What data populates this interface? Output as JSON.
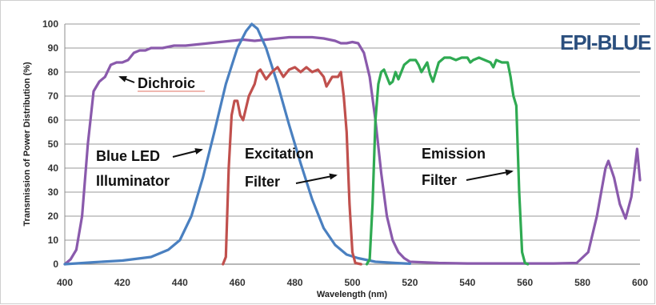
{
  "chart_data": {
    "type": "line",
    "title": "",
    "badge": "EPI-BLUE",
    "xlabel": "Wavelength (nm)",
    "ylabel": "Transmission of Power Distribution (%)",
    "xlim": [
      400,
      600
    ],
    "ylim": [
      0,
      100
    ],
    "xticks": [
      400,
      420,
      440,
      460,
      480,
      500,
      520,
      540,
      560,
      580,
      600
    ],
    "yticks": [
      0,
      10,
      20,
      30,
      40,
      50,
      60,
      70,
      80,
      90,
      100
    ],
    "grid": "horizontal",
    "series": [
      {
        "name": "Dichroic",
        "color": "#8a5aac",
        "points": [
          [
            400,
            0
          ],
          [
            402,
            2
          ],
          [
            404,
            6
          ],
          [
            406,
            20
          ],
          [
            408,
            50
          ],
          [
            410,
            72
          ],
          [
            412,
            76
          ],
          [
            414,
            78
          ],
          [
            416,
            83
          ],
          [
            418,
            84
          ],
          [
            420,
            84
          ],
          [
            422,
            85
          ],
          [
            424,
            88
          ],
          [
            426,
            89
          ],
          [
            428,
            89
          ],
          [
            430,
            90
          ],
          [
            434,
            90
          ],
          [
            438,
            91
          ],
          [
            442,
            91
          ],
          [
            446,
            91.5
          ],
          [
            450,
            92
          ],
          [
            454,
            92.5
          ],
          [
            458,
            93
          ],
          [
            462,
            93.5
          ],
          [
            466,
            93
          ],
          [
            470,
            93.5
          ],
          [
            474,
            94
          ],
          [
            478,
            94.5
          ],
          [
            482,
            94.5
          ],
          [
            486,
            94.5
          ],
          [
            490,
            94
          ],
          [
            494,
            93
          ],
          [
            496,
            92
          ],
          [
            498,
            92
          ],
          [
            500,
            92.5
          ],
          [
            502,
            92
          ],
          [
            504,
            88
          ],
          [
            506,
            78
          ],
          [
            508,
            60
          ],
          [
            510,
            38
          ],
          [
            512,
            20
          ],
          [
            514,
            10
          ],
          [
            516,
            5
          ],
          [
            518,
            2.5
          ],
          [
            520,
            1
          ],
          [
            530,
            0.5
          ],
          [
            540,
            0.3
          ],
          [
            560,
            0.3
          ],
          [
            570,
            0.3
          ],
          [
            578,
            0.5
          ],
          [
            582,
            5
          ],
          [
            585,
            20
          ],
          [
            588,
            40
          ],
          [
            589,
            43
          ],
          [
            591,
            36
          ],
          [
            593,
            25
          ],
          [
            595,
            19
          ],
          [
            597,
            28
          ],
          [
            599,
            48
          ],
          [
            600,
            35
          ]
        ]
      },
      {
        "name": "Blue LED Illuminator",
        "color": "#4a80c0",
        "points": [
          [
            400,
            0
          ],
          [
            410,
            0.8
          ],
          [
            420,
            1.5
          ],
          [
            430,
            3
          ],
          [
            436,
            6
          ],
          [
            440,
            10
          ],
          [
            444,
            20
          ],
          [
            448,
            36
          ],
          [
            452,
            55
          ],
          [
            456,
            75
          ],
          [
            460,
            90
          ],
          [
            463,
            97
          ],
          [
            465,
            100
          ],
          [
            467,
            98
          ],
          [
            470,
            90
          ],
          [
            474,
            75
          ],
          [
            478,
            58
          ],
          [
            482,
            42
          ],
          [
            486,
            27
          ],
          [
            490,
            15
          ],
          [
            494,
            8
          ],
          [
            498,
            4
          ],
          [
            502,
            2.5
          ],
          [
            508,
            1
          ],
          [
            515,
            0.5
          ],
          [
            520,
            0.2
          ]
        ]
      },
      {
        "name": "Excitation Filter",
        "color": "#c0504d",
        "points": [
          [
            455,
            0
          ],
          [
            456,
            3
          ],
          [
            457,
            40
          ],
          [
            458,
            62
          ],
          [
            459,
            68
          ],
          [
            460,
            68
          ],
          [
            461,
            62
          ],
          [
            462,
            60
          ],
          [
            463,
            65
          ],
          [
            464,
            70
          ],
          [
            466,
            75
          ],
          [
            467,
            80
          ],
          [
            468,
            81
          ],
          [
            470,
            77
          ],
          [
            472,
            80
          ],
          [
            474,
            82
          ],
          [
            476,
            78
          ],
          [
            478,
            81
          ],
          [
            480,
            82
          ],
          [
            482,
            80
          ],
          [
            484,
            82
          ],
          [
            486,
            80
          ],
          [
            488,
            81
          ],
          [
            490,
            78
          ],
          [
            491,
            74
          ],
          [
            493,
            78
          ],
          [
            495,
            78
          ],
          [
            496,
            80
          ],
          [
            497,
            70
          ],
          [
            498,
            55
          ],
          [
            499,
            25
          ],
          [
            500,
            5
          ],
          [
            501,
            0.5
          ],
          [
            503,
            0
          ]
        ]
      },
      {
        "name": "Emission Filter",
        "color": "#2faa52",
        "points": [
          [
            505,
            0
          ],
          [
            506,
            2
          ],
          [
            507,
            25
          ],
          [
            508,
            60
          ],
          [
            509,
            75
          ],
          [
            510,
            80
          ],
          [
            511,
            81
          ],
          [
            512,
            78
          ],
          [
            513,
            75
          ],
          [
            514,
            76
          ],
          [
            515,
            80
          ],
          [
            516,
            77
          ],
          [
            517,
            80
          ],
          [
            518,
            83
          ],
          [
            520,
            85
          ],
          [
            522,
            85
          ],
          [
            523,
            83
          ],
          [
            524,
            80
          ],
          [
            525,
            82
          ],
          [
            526,
            84
          ],
          [
            527,
            79
          ],
          [
            528,
            76
          ],
          [
            529,
            80
          ],
          [
            530,
            84
          ],
          [
            532,
            86
          ],
          [
            534,
            86
          ],
          [
            536,
            85
          ],
          [
            538,
            86
          ],
          [
            540,
            86
          ],
          [
            541,
            84
          ],
          [
            542,
            85
          ],
          [
            544,
            86
          ],
          [
            546,
            85
          ],
          [
            548,
            84
          ],
          [
            549,
            82
          ],
          [
            550,
            85
          ],
          [
            552,
            84
          ],
          [
            554,
            84
          ],
          [
            555,
            78
          ],
          [
            556,
            70
          ],
          [
            557,
            66
          ],
          [
            558,
            30
          ],
          [
            559,
            5
          ],
          [
            560,
            0.5
          ],
          [
            561,
            0
          ]
        ]
      }
    ],
    "annotations": [
      {
        "text": "Dichroic",
        "target": "Dichroic"
      },
      {
        "text": "Blue LED",
        "line": 2,
        "of": "Blue LED Illuminator"
      },
      {
        "text": "Illuminator",
        "of": "Blue LED Illuminator"
      },
      {
        "text": "Excitation",
        "of": "Excitation Filter"
      },
      {
        "text": "Filter",
        "of": "Excitation Filter"
      },
      {
        "text": "Emission",
        "of": "Emission Filter"
      },
      {
        "text": "Filter",
        "of": "Emission Filter"
      }
    ]
  }
}
